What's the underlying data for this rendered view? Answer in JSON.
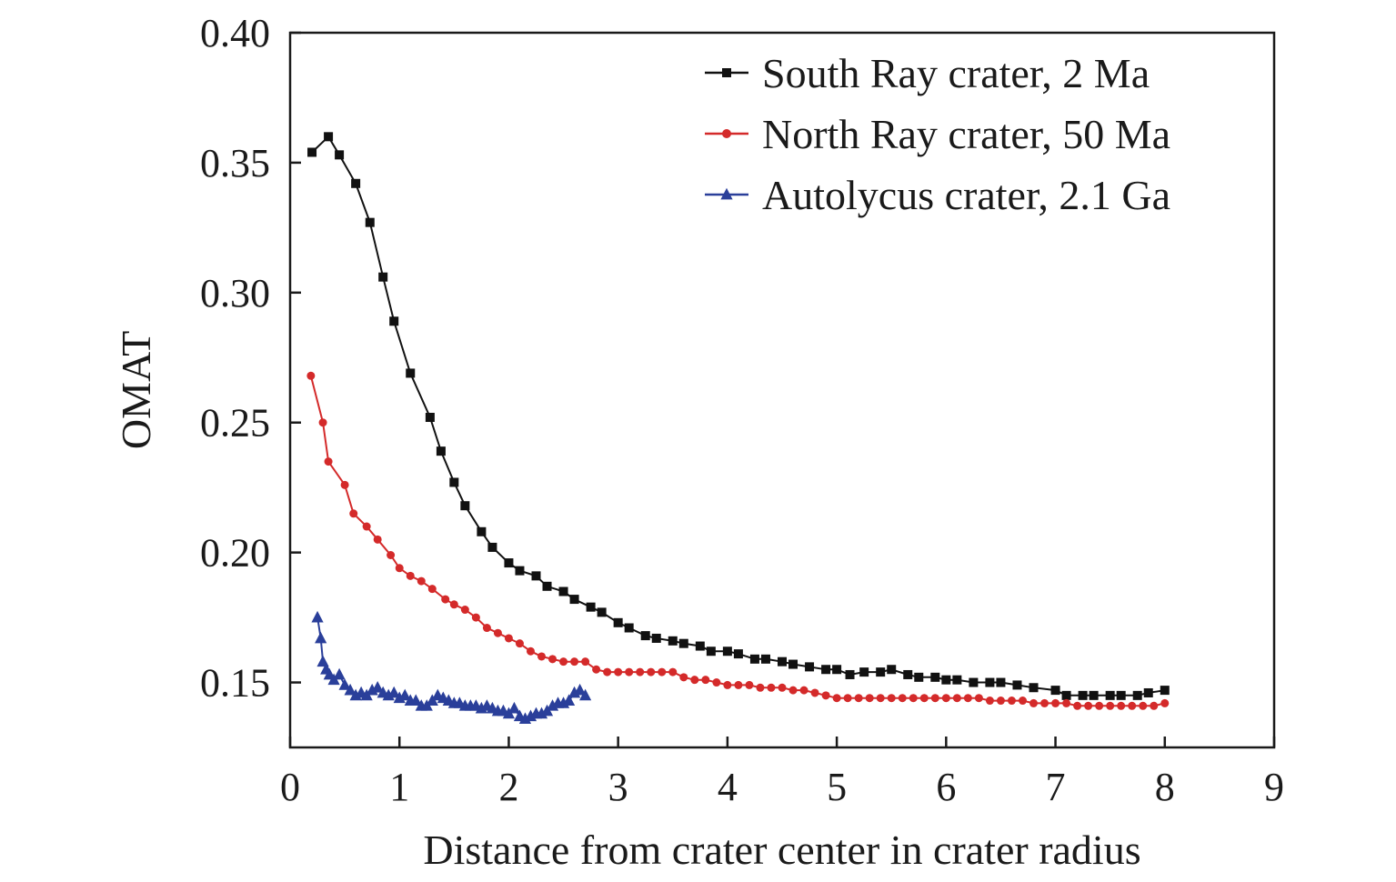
{
  "chart_data": {
    "type": "line",
    "title": "",
    "xlabel": "Distance from crater center in crater radius",
    "ylabel": "OMAT",
    "xlim": [
      0,
      9
    ],
    "ylim": [
      0.125,
      0.4
    ],
    "xticks": [
      0,
      1,
      2,
      3,
      4,
      5,
      6,
      7,
      8,
      9
    ],
    "xtick_labels": [
      "0",
      "1",
      "2",
      "3",
      "4",
      "5",
      "6",
      "7",
      "8",
      "9"
    ],
    "yticks": [
      0.15,
      0.2,
      0.25,
      0.3,
      0.35,
      0.4
    ],
    "ytick_labels": [
      "0.15",
      "0.20",
      "0.25",
      "0.30",
      "0.35",
      "0.40"
    ],
    "grid": false,
    "legend": "top-right",
    "series": [
      {
        "name": "South Ray crater, 2 Ma",
        "color": "#111111",
        "marker": "square",
        "x": [
          0.2,
          0.35,
          0.45,
          0.6,
          0.73,
          0.85,
          0.95,
          1.1,
          1.28,
          1.38,
          1.5,
          1.6,
          1.75,
          1.85,
          2.0,
          2.1,
          2.25,
          2.35,
          2.5,
          2.6,
          2.75,
          2.85,
          3.0,
          3.1,
          3.25,
          3.35,
          3.5,
          3.6,
          3.75,
          3.85,
          4.0,
          4.1,
          4.25,
          4.35,
          4.5,
          4.6,
          4.75,
          4.9,
          5.0,
          5.12,
          5.25,
          5.4,
          5.5,
          5.65,
          5.75,
          5.9,
          6.0,
          6.1,
          6.25,
          6.4,
          6.5,
          6.65,
          6.8,
          7.0,
          7.1,
          7.25,
          7.35,
          7.5,
          7.6,
          7.75,
          7.85,
          8.0
        ],
        "y": [
          0.354,
          0.36,
          0.353,
          0.342,
          0.327,
          0.306,
          0.289,
          0.269,
          0.252,
          0.239,
          0.227,
          0.218,
          0.208,
          0.202,
          0.196,
          0.193,
          0.191,
          0.187,
          0.185,
          0.182,
          0.179,
          0.177,
          0.173,
          0.171,
          0.168,
          0.167,
          0.166,
          0.165,
          0.164,
          0.162,
          0.162,
          0.161,
          0.159,
          0.159,
          0.158,
          0.157,
          0.156,
          0.155,
          0.155,
          0.153,
          0.154,
          0.154,
          0.155,
          0.153,
          0.152,
          0.152,
          0.151,
          0.151,
          0.15,
          0.15,
          0.15,
          0.149,
          0.148,
          0.147,
          0.145,
          0.145,
          0.145,
          0.145,
          0.145,
          0.145,
          0.146,
          0.147
        ]
      },
      {
        "name": "North Ray crater, 50 Ma",
        "color": "#d42a2a",
        "marker": "circle",
        "x": [
          0.19,
          0.3,
          0.35,
          0.5,
          0.58,
          0.7,
          0.8,
          0.92,
          1.0,
          1.1,
          1.2,
          1.3,
          1.42,
          1.5,
          1.6,
          1.7,
          1.8,
          1.9,
          2.0,
          2.1,
          2.2,
          2.3,
          2.4,
          2.5,
          2.6,
          2.7,
          2.8,
          2.9,
          3.0,
          3.1,
          3.2,
          3.3,
          3.4,
          3.5,
          3.6,
          3.7,
          3.8,
          3.9,
          4.0,
          4.1,
          4.2,
          4.3,
          4.4,
          4.5,
          4.6,
          4.7,
          4.8,
          4.9,
          5.0,
          5.1,
          5.2,
          5.3,
          5.4,
          5.5,
          5.6,
          5.7,
          5.8,
          5.9,
          6.0,
          6.1,
          6.2,
          6.3,
          6.4,
          6.5,
          6.6,
          6.7,
          6.8,
          6.9,
          7.0,
          7.1,
          7.2,
          7.3,
          7.4,
          7.5,
          7.6,
          7.7,
          7.8,
          7.9,
          8.0
        ],
        "y": [
          0.268,
          0.25,
          0.235,
          0.226,
          0.215,
          0.21,
          0.205,
          0.199,
          0.194,
          0.191,
          0.189,
          0.186,
          0.182,
          0.18,
          0.178,
          0.175,
          0.171,
          0.169,
          0.167,
          0.165,
          0.162,
          0.16,
          0.159,
          0.158,
          0.158,
          0.158,
          0.155,
          0.154,
          0.154,
          0.154,
          0.154,
          0.154,
          0.154,
          0.154,
          0.152,
          0.151,
          0.151,
          0.15,
          0.149,
          0.149,
          0.149,
          0.148,
          0.148,
          0.148,
          0.147,
          0.147,
          0.146,
          0.145,
          0.144,
          0.144,
          0.144,
          0.144,
          0.144,
          0.144,
          0.144,
          0.144,
          0.144,
          0.144,
          0.144,
          0.144,
          0.144,
          0.144,
          0.143,
          0.143,
          0.143,
          0.143,
          0.142,
          0.142,
          0.142,
          0.142,
          0.141,
          0.141,
          0.141,
          0.141,
          0.141,
          0.141,
          0.141,
          0.141,
          0.142
        ]
      },
      {
        "name": "Autolycus crater, 2.1 Ga",
        "color": "#2a3f9a",
        "marker": "triangle",
        "x": [
          0.25,
          0.28,
          0.3,
          0.33,
          0.36,
          0.4,
          0.45,
          0.5,
          0.55,
          0.6,
          0.65,
          0.7,
          0.75,
          0.8,
          0.85,
          0.9,
          0.95,
          1.0,
          1.05,
          1.1,
          1.15,
          1.2,
          1.25,
          1.3,
          1.35,
          1.4,
          1.45,
          1.5,
          1.55,
          1.6,
          1.65,
          1.7,
          1.75,
          1.8,
          1.85,
          1.9,
          1.95,
          2.0,
          2.05,
          2.1,
          2.15,
          2.2,
          2.25,
          2.3,
          2.35,
          2.4,
          2.45,
          2.5,
          2.55,
          2.6,
          2.65,
          2.7
        ],
        "y": [
          0.175,
          0.167,
          0.158,
          0.155,
          0.153,
          0.151,
          0.153,
          0.149,
          0.147,
          0.145,
          0.146,
          0.145,
          0.147,
          0.148,
          0.146,
          0.145,
          0.146,
          0.144,
          0.145,
          0.143,
          0.143,
          0.141,
          0.141,
          0.143,
          0.145,
          0.144,
          0.143,
          0.142,
          0.142,
          0.141,
          0.141,
          0.141,
          0.14,
          0.141,
          0.14,
          0.139,
          0.139,
          0.138,
          0.14,
          0.137,
          0.136,
          0.137,
          0.138,
          0.138,
          0.139,
          0.141,
          0.142,
          0.142,
          0.143,
          0.146,
          0.147,
          0.145
        ]
      }
    ]
  }
}
